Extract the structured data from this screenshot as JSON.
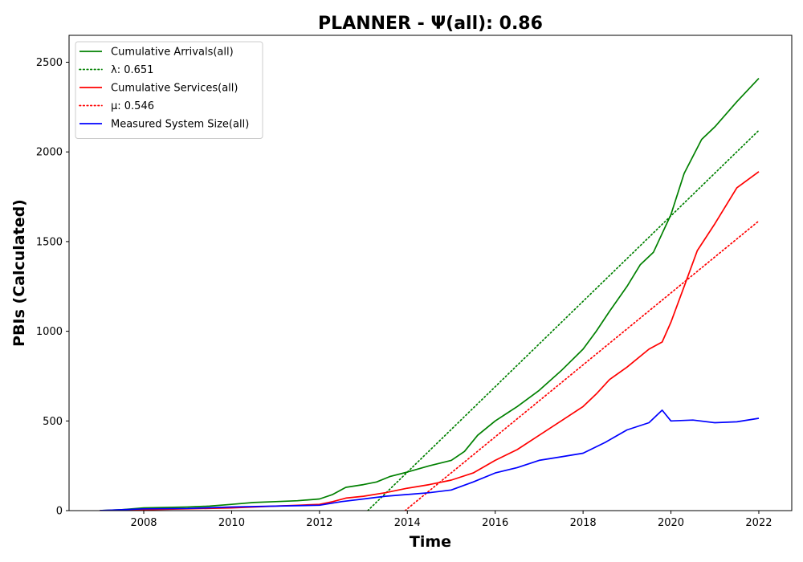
{
  "chart_data": {
    "type": "line",
    "title": "PLANNER -  Ψ(all): 0.86",
    "xlabel": "Time",
    "ylabel": "PBIs (Calculated)",
    "xlim": [
      2006.3,
      2022.75
    ],
    "ylim": [
      0,
      2650
    ],
    "x_ticks": [
      "2008",
      "2010",
      "2012",
      "2014",
      "2016",
      "2018",
      "2020",
      "2022"
    ],
    "y_ticks": [
      "0",
      "500",
      "1000",
      "1500",
      "2000",
      "2500"
    ],
    "grid": false,
    "legend_position": "top-left",
    "series": [
      {
        "name": "Cumulative Arrivals(all)",
        "color": "#008000",
        "style": "solid",
        "x": [
          2007.0,
          2007.5,
          2008.0,
          2009.0,
          2009.5,
          2010.0,
          2010.5,
          2011.0,
          2011.5,
          2012.0,
          2012.3,
          2012.6,
          2013.0,
          2013.3,
          2013.6,
          2014.0,
          2014.5,
          2015.0,
          2015.3,
          2015.6,
          2016.0,
          2016.5,
          2017.0,
          2017.5,
          2018.0,
          2018.3,
          2018.6,
          2019.0,
          2019.3,
          2019.6,
          2020.0,
          2020.3,
          2020.7,
          2021.0,
          2021.5,
          2022.0
        ],
        "y": [
          0,
          5,
          15,
          20,
          25,
          35,
          45,
          50,
          55,
          65,
          90,
          130,
          145,
          160,
          190,
          215,
          250,
          280,
          330,
          420,
          500,
          580,
          670,
          780,
          900,
          1000,
          1110,
          1250,
          1370,
          1440,
          1650,
          1880,
          2070,
          2140,
          2280,
          2410
        ]
      },
      {
        "name": "λ: 0.651",
        "color": "#008000",
        "style": "dotted",
        "x": [
          2013.1,
          2022.0
        ],
        "y": [
          0,
          2120
        ]
      },
      {
        "name": "Cumulative Services(all)",
        "color": "#ff0000",
        "style": "solid",
        "x": [
          2007.0,
          2007.5,
          2008.0,
          2009.0,
          2010.0,
          2010.5,
          2011.0,
          2011.5,
          2012.0,
          2012.3,
          2012.6,
          2013.0,
          2013.5,
          2014.0,
          2014.5,
          2015.0,
          2015.5,
          2016.0,
          2016.5,
          2017.0,
          2017.5,
          2018.0,
          2018.3,
          2018.6,
          2019.0,
          2019.5,
          2019.8,
          2020.0,
          2020.3,
          2020.6,
          2021.0,
          2021.5,
          2022.0
        ],
        "y": [
          0,
          3,
          5,
          10,
          15,
          20,
          25,
          30,
          35,
          50,
          70,
          80,
          100,
          125,
          145,
          170,
          210,
          280,
          340,
          420,
          500,
          580,
          650,
          730,
          800,
          900,
          940,
          1050,
          1250,
          1450,
          1600,
          1800,
          1890
        ]
      },
      {
        "name": "μ: 0.546",
        "color": "#ff0000",
        "style": "dotted",
        "x": [
          2013.95,
          2022.0
        ],
        "y": [
          0,
          1615
        ]
      },
      {
        "name": "Measured System Size(all)",
        "color": "#0000ff",
        "style": "solid",
        "x": [
          2007.0,
          2007.5,
          2008.0,
          2009.0,
          2010.0,
          2011.0,
          2012.0,
          2012.5,
          2013.0,
          2013.5,
          2014.0,
          2014.5,
          2015.0,
          2015.5,
          2016.0,
          2016.5,
          2017.0,
          2017.5,
          2018.0,
          2018.5,
          2019.0,
          2019.5,
          2019.8,
          2020.0,
          2020.5,
          2021.0,
          2021.5,
          2022.0
        ],
        "y": [
          0,
          5,
          10,
          12,
          20,
          25,
          30,
          50,
          65,
          80,
          90,
          100,
          115,
          160,
          210,
          240,
          280,
          300,
          320,
          380,
          450,
          490,
          560,
          500,
          505,
          490,
          495,
          515
        ]
      }
    ]
  }
}
